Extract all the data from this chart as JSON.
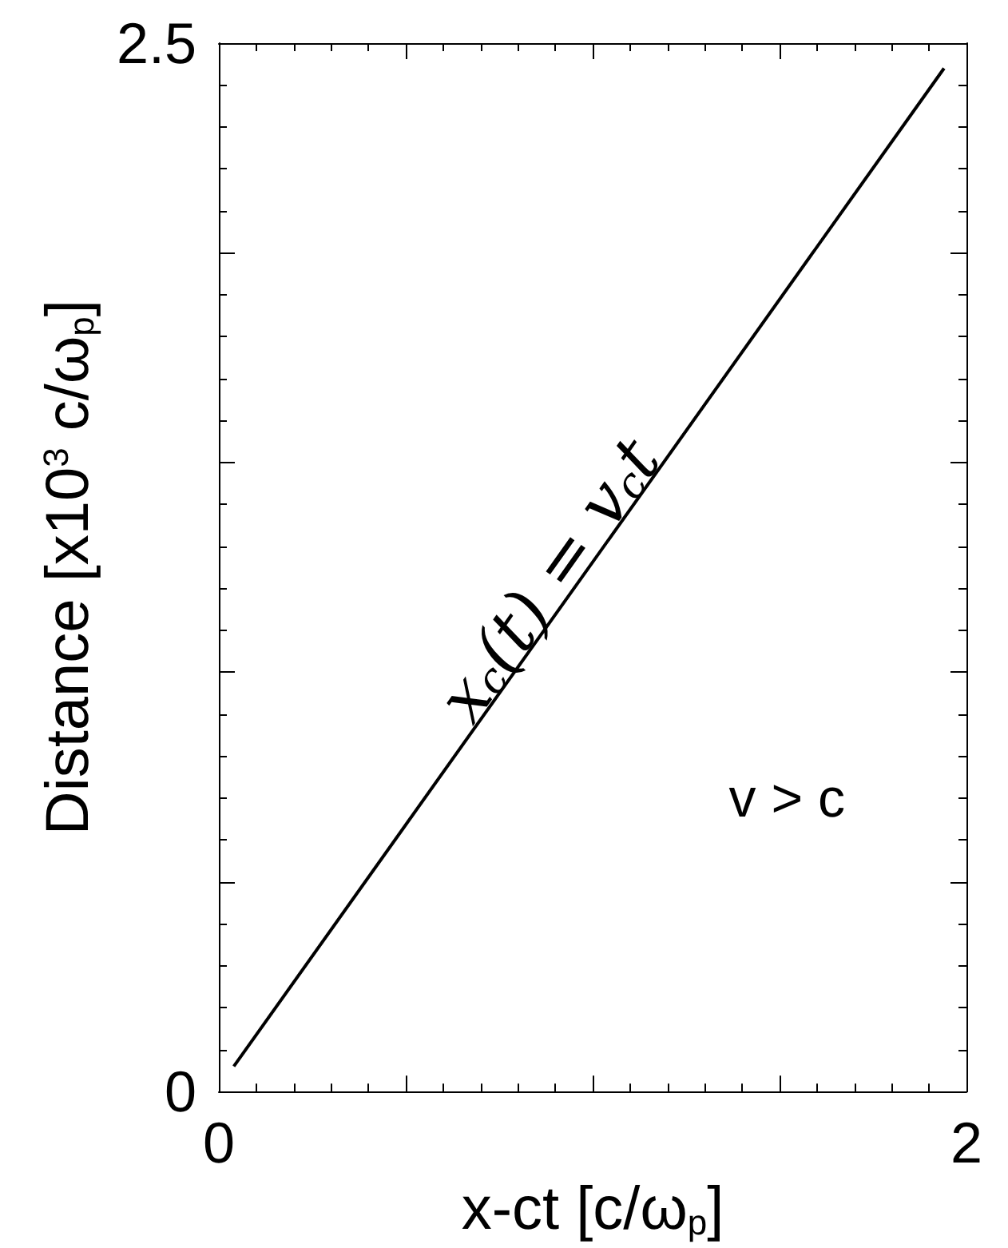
{
  "chart_data": {
    "type": "line",
    "xlabel": "x-ct [c/ω$_{p}$]",
    "ylabel": "Distance [x10$^{3}$ c/ω$_{p}$]",
    "x": [
      0.04,
      1.94
    ],
    "series": [
      {
        "color": "#000000",
        "values": [
          0.06,
          2.44
        ]
      }
    ],
    "xlim": [
      0,
      2
    ],
    "ylim": [
      0,
      2.5
    ],
    "xticks": [
      0,
      {
        "value": 0.5,
        "label": null
      },
      {
        "value": 1,
        "label": null
      },
      {
        "value": 1.5,
        "label": null
      },
      2
    ],
    "yticks": [
      0,
      {
        "value": 0.5,
        "label": null
      },
      {
        "value": 1,
        "label": null
      },
      {
        "value": 1.5,
        "label": null
      },
      {
        "value": 2,
        "label": null
      },
      2.5
    ],
    "annotations": [
      "x$_{c}$(t) = v$_{c}$t",
      "v > c"
    ],
    "marker": "none",
    "line_style": "solid",
    "grid": false
  }
}
